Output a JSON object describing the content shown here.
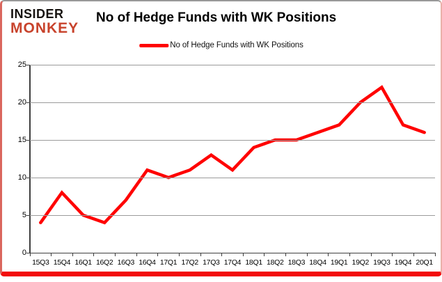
{
  "logo": {
    "line1": "INSIDER",
    "line2": "MONKEY"
  },
  "header": {
    "title": "No of Hedge Funds with WK Positions"
  },
  "legend": {
    "label": "No of Hedge Funds with WK Positions",
    "marker_color": "#ff0000"
  },
  "chart_data": {
    "type": "line",
    "title": "No of Hedge Funds with WK Positions",
    "categories": [
      "15Q3",
      "15Q4",
      "16Q1",
      "16Q2",
      "16Q3",
      "16Q4",
      "17Q1",
      "17Q2",
      "17Q3",
      "17Q4",
      "18Q1",
      "18Q2",
      "18Q3",
      "18Q4",
      "19Q1",
      "19Q2",
      "19Q3",
      "19Q4",
      "20Q1"
    ],
    "series": [
      {
        "name": "No of Hedge Funds with WK Positions",
        "color": "#ff0000",
        "values": [
          4,
          8,
          5,
          4,
          7,
          11,
          10,
          11,
          13,
          11,
          14,
          15,
          15,
          16,
          17,
          20,
          22,
          17,
          16
        ]
      }
    ],
    "xlabel": "",
    "ylabel": "",
    "ylim": [
      0,
      25
    ],
    "yticks": [
      0,
      5,
      10,
      15,
      20,
      25
    ],
    "grid": true,
    "legend_position": "top-center"
  },
  "colors": {
    "series_red": "#ff0000",
    "logo_red": "#c8432c",
    "frame_bottom_red": "#f30b0b",
    "frame_side_red": "#da675e",
    "gridline_gray": "#9b9b9b",
    "axis_gray": "#3f3f3f",
    "text_black": "#000000"
  }
}
